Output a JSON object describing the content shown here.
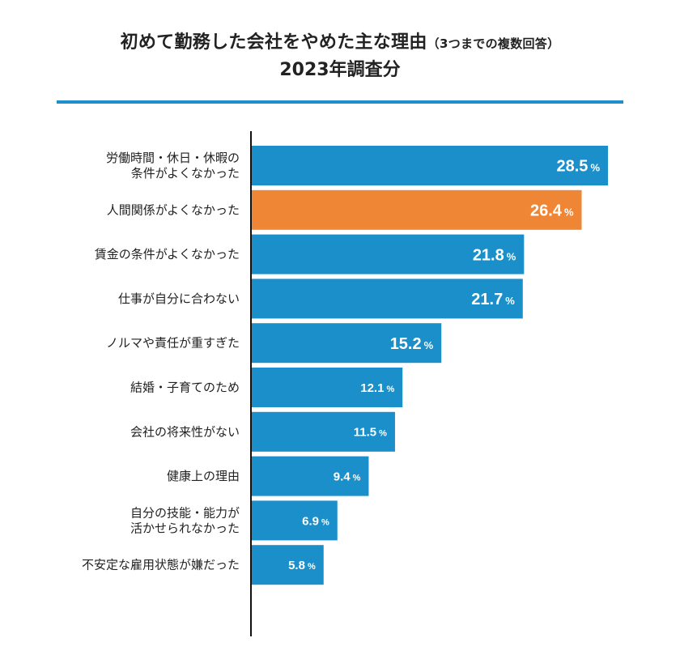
{
  "chart_data": {
    "type": "bar",
    "orientation": "horizontal",
    "title": "初めて勤務した会社をやめた主な理由",
    "title_note": "（3つまでの複数回答）",
    "subtitle": "2023年調査分",
    "unit": "%",
    "categories": [
      [
        "労働時間・休日・休暇の",
        "条件がよくなかった"
      ],
      [
        "人間関係がよくなかった"
      ],
      [
        "賃金の条件がよくなかった"
      ],
      [
        "仕事が自分に合わない"
      ],
      [
        "ノルマや責任が重すぎた"
      ],
      [
        "結婚・子育てのため"
      ],
      [
        "会社の将来性がない"
      ],
      [
        "健康上の理由"
      ],
      [
        "自分の技能・能力が",
        "活かせられなかった"
      ],
      [
        "不安定な雇用状態が嫌だった"
      ]
    ],
    "values": [
      28.5,
      26.4,
      21.8,
      21.7,
      15.2,
      12.1,
      11.5,
      9.4,
      6.9,
      5.8
    ],
    "value_labels": [
      "28.5",
      "26.4",
      "21.8",
      "21.7",
      "15.2",
      "12.1",
      "11.5",
      "9.4",
      "6.9",
      "5.8"
    ],
    "highlight_index": 1,
    "colors": {
      "bar": "#1a8fc9",
      "highlight": "#ef8635",
      "axis": "#111111",
      "rule": "#1f8fcb"
    },
    "xlim": [
      0,
      30
    ]
  }
}
